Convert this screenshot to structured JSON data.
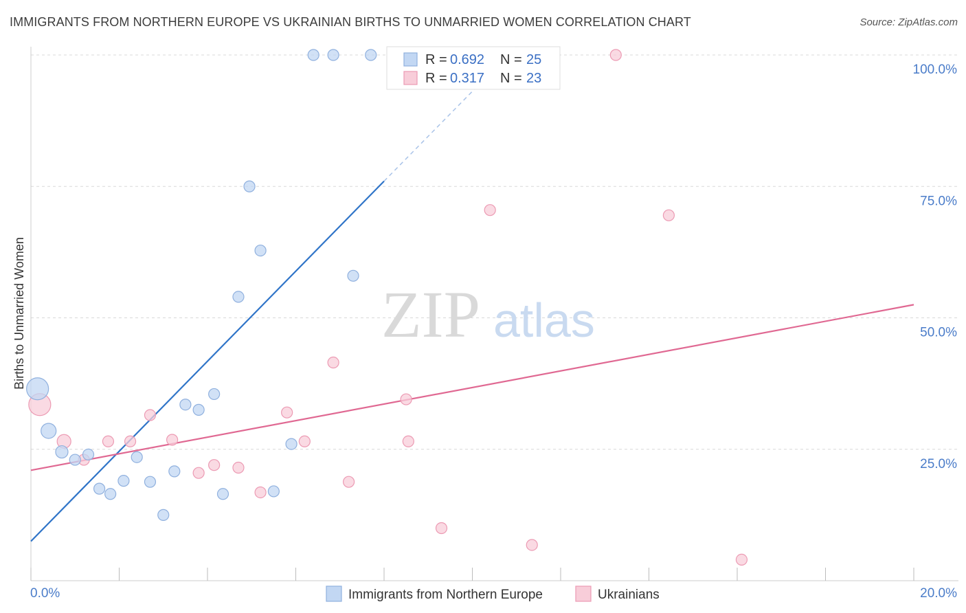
{
  "title": "IMMIGRANTS FROM NORTHERN EUROPE VS UKRAINIAN BIRTHS TO UNMARRIED WOMEN CORRELATION CHART",
  "source": "Source: ZipAtlas.com",
  "watermark": {
    "zip": "ZIP",
    "atlas": "atlas"
  },
  "colors": {
    "blue_fill": "#c2d7f3",
    "blue_stroke": "#8fb0de",
    "blue_line": "#2f74c8",
    "pink_fill": "#f8cdd9",
    "pink_stroke": "#ec9ab3",
    "pink_line": "#e06892",
    "grid": "#d8d8d8",
    "axis_label": "#4a7cc9"
  },
  "chart_data": {
    "type": "scatter",
    "title": "IMMIGRANTS FROM NORTHERN EUROPE VS UKRAINIAN BIRTHS TO UNMARRIED WOMEN CORRELATION CHART",
    "xlabel": "Immigrants from Northern Europe",
    "ylabel": "Births to Unmarried Women",
    "xlim": [
      0,
      20
    ],
    "ylim": [
      0,
      100
    ],
    "x_tick_labels": {
      "min": "0.0%",
      "max": "20.0%"
    },
    "y_ticks": [
      {
        "value": 25,
        "label": "25.0%"
      },
      {
        "value": 50,
        "label": "50.0%"
      },
      {
        "value": 75,
        "label": "75.0%"
      },
      {
        "value": 100,
        "label": "100.0%"
      }
    ],
    "grid": true,
    "legend": {
      "position": "top-center",
      "entries": [
        {
          "r_label": "R =",
          "r_value": "0.692",
          "n_label": "N =",
          "n_value": "25"
        },
        {
          "r_label": "R =",
          "r_value": "0.317",
          "n_label": "N =",
          "n_value": "23"
        }
      ]
    },
    "series": [
      {
        "name": "Immigrants from Northern Europe",
        "color": "blue",
        "trend": {
          "x0": 0,
          "y0": 7.5,
          "x1": 8.0,
          "y1": 76,
          "dash_to_x": 10.4,
          "dash_to_y": 96.5
        },
        "points": [
          {
            "x": 0.15,
            "y": 36.5,
            "size": 16
          },
          {
            "x": 0.4,
            "y": 28.5,
            "size": 11
          },
          {
            "x": 0.7,
            "y": 24.5,
            "size": 9
          },
          {
            "x": 1.0,
            "y": 23.0,
            "size": 8
          },
          {
            "x": 1.3,
            "y": 24.0,
            "size": 8
          },
          {
            "x": 1.55,
            "y": 17.5,
            "size": 8
          },
          {
            "x": 1.8,
            "y": 16.5,
            "size": 8
          },
          {
            "x": 2.1,
            "y": 19.0,
            "size": 8
          },
          {
            "x": 2.4,
            "y": 23.5,
            "size": 8
          },
          {
            "x": 2.7,
            "y": 18.8,
            "size": 8
          },
          {
            "x": 3.0,
            "y": 12.5,
            "size": 8
          },
          {
            "x": 3.25,
            "y": 20.8,
            "size": 8
          },
          {
            "x": 3.5,
            "y": 33.5,
            "size": 8
          },
          {
            "x": 3.8,
            "y": 32.5,
            "size": 8
          },
          {
            "x": 4.15,
            "y": 35.5,
            "size": 8
          },
          {
            "x": 4.35,
            "y": 16.5,
            "size": 8
          },
          {
            "x": 4.7,
            "y": 54.0,
            "size": 8
          },
          {
            "x": 4.95,
            "y": 75.0,
            "size": 8
          },
          {
            "x": 5.2,
            "y": 62.8,
            "size": 8
          },
          {
            "x": 5.5,
            "y": 17.0,
            "size": 8
          },
          {
            "x": 5.9,
            "y": 26.0,
            "size": 8
          },
          {
            "x": 6.4,
            "y": 100.0,
            "size": 8
          },
          {
            "x": 6.85,
            "y": 100.0,
            "size": 8
          },
          {
            "x": 7.3,
            "y": 58.0,
            "size": 8
          },
          {
            "x": 7.7,
            "y": 100.0,
            "size": 8
          }
        ]
      },
      {
        "name": "Ukrainians",
        "color": "pink",
        "trend": {
          "x0": 0,
          "y0": 21.0,
          "x1": 20,
          "y1": 52.5
        },
        "points": [
          {
            "x": 0.2,
            "y": 33.5,
            "size": 16
          },
          {
            "x": 0.75,
            "y": 26.5,
            "size": 10
          },
          {
            "x": 1.2,
            "y": 23.0,
            "size": 8
          },
          {
            "x": 1.75,
            "y": 26.5,
            "size": 8
          },
          {
            "x": 2.25,
            "y": 26.5,
            "size": 8
          },
          {
            "x": 2.7,
            "y": 31.5,
            "size": 8
          },
          {
            "x": 3.2,
            "y": 26.8,
            "size": 8
          },
          {
            "x": 3.8,
            "y": 20.5,
            "size": 8
          },
          {
            "x": 4.15,
            "y": 22.0,
            "size": 8
          },
          {
            "x": 4.7,
            "y": 21.5,
            "size": 8
          },
          {
            "x": 5.2,
            "y": 16.8,
            "size": 8
          },
          {
            "x": 5.8,
            "y": 32.0,
            "size": 8
          },
          {
            "x": 6.2,
            "y": 26.5,
            "size": 8
          },
          {
            "x": 6.85,
            "y": 41.5,
            "size": 8
          },
          {
            "x": 7.2,
            "y": 18.8,
            "size": 8
          },
          {
            "x": 8.5,
            "y": 34.5,
            "size": 8
          },
          {
            "x": 8.55,
            "y": 26.5,
            "size": 8
          },
          {
            "x": 9.3,
            "y": 10.0,
            "size": 8
          },
          {
            "x": 10.4,
            "y": 70.5,
            "size": 8
          },
          {
            "x": 11.35,
            "y": 6.8,
            "size": 8
          },
          {
            "x": 13.25,
            "y": 100.0,
            "size": 8
          },
          {
            "x": 14.45,
            "y": 69.5,
            "size": 8
          },
          {
            "x": 16.1,
            "y": 4.0,
            "size": 8
          }
        ]
      }
    ]
  }
}
